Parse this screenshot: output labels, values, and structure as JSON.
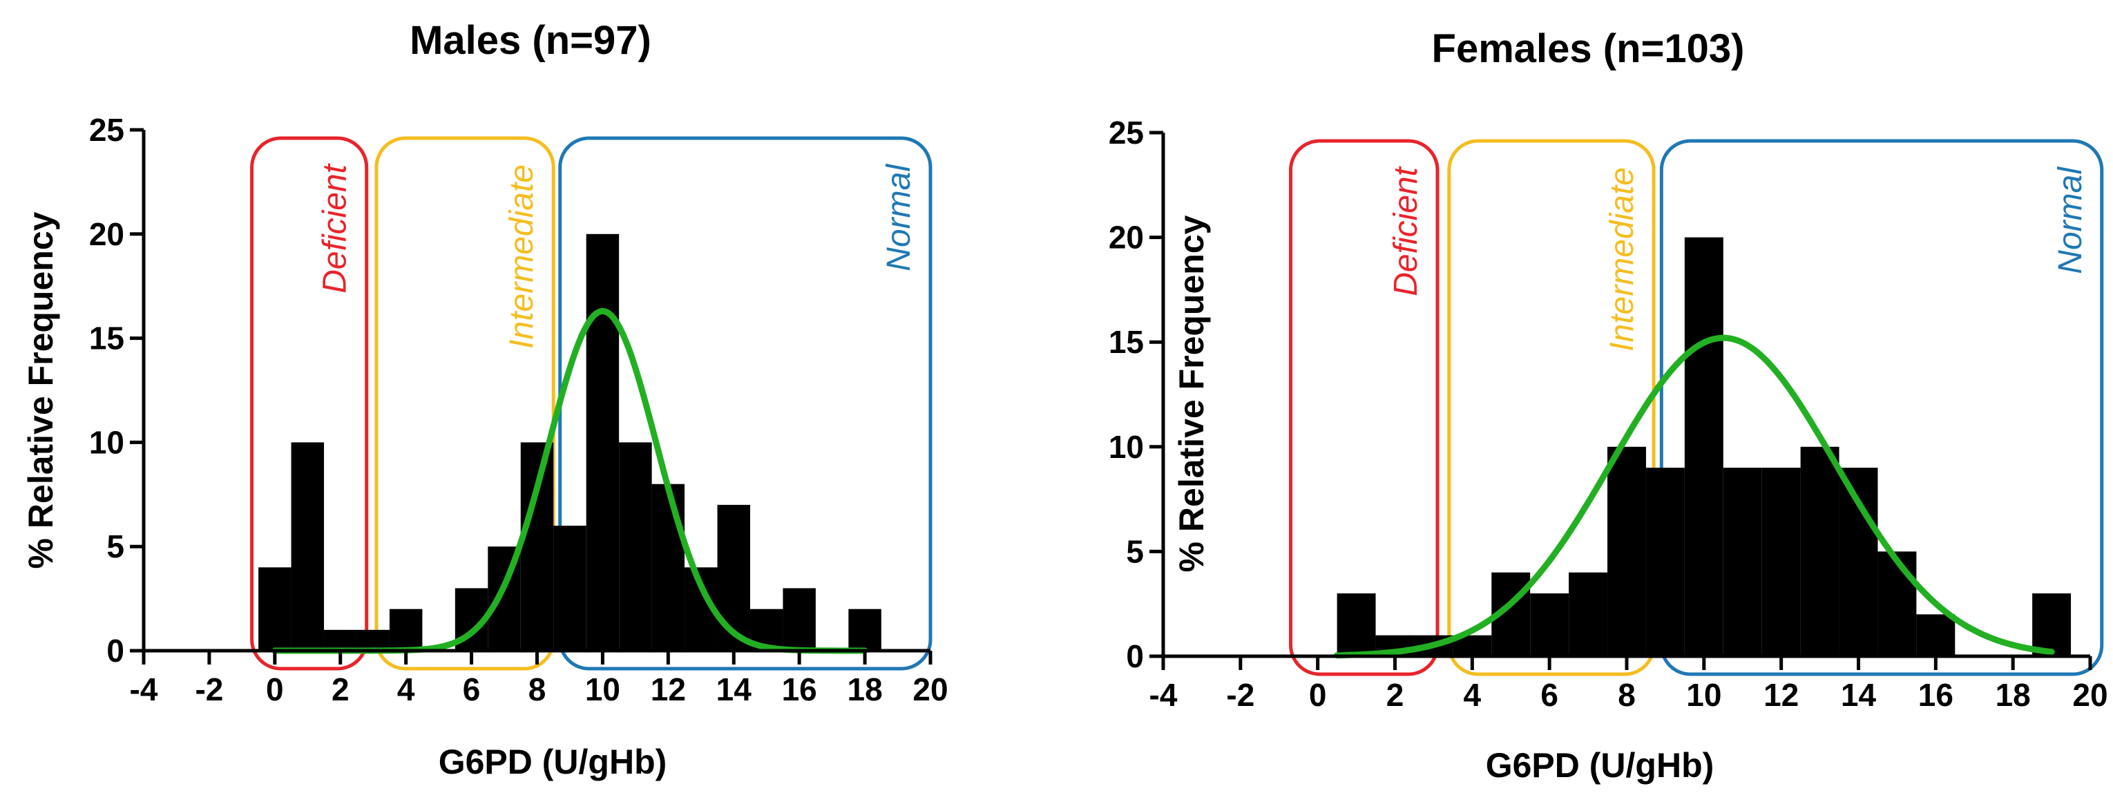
{
  "chart_data": [
    {
      "type": "bar",
      "title": "Males (n=97)",
      "xlabel": "G6PD (U/gHb)",
      "ylabel": "% Relative Frequency",
      "xlim": [
        -4,
        20
      ],
      "ylim": [
        0,
        25
      ],
      "xticks": [
        -4,
        -2,
        0,
        2,
        4,
        6,
        8,
        10,
        12,
        14,
        16,
        18,
        20
      ],
      "yticks": [
        0,
        5,
        10,
        15,
        20,
        25
      ],
      "grid": false,
      "bin_width": 1,
      "bin_centers": [
        0,
        1,
        2,
        3,
        4,
        5,
        6,
        7,
        8,
        9,
        10,
        11,
        12,
        13,
        14,
        15,
        16,
        17,
        18
      ],
      "values": [
        4,
        10,
        1,
        1,
        2,
        0,
        3,
        5,
        10,
        6,
        20,
        10,
        8,
        4,
        7,
        2,
        3,
        0,
        2
      ],
      "fit_curve": {
        "type": "gaussian",
        "mean": 10.0,
        "sd": 1.65,
        "peak": 16.3,
        "x_range": [
          0,
          18
        ]
      },
      "zones": [
        {
          "label": "Deficient",
          "range": [
            -0.7,
            2.8
          ],
          "color": "#e8242b"
        },
        {
          "label": "Intermediate",
          "range": [
            3.1,
            8.5
          ],
          "color": "#f5bd1f"
        },
        {
          "label": "Normal",
          "range": [
            8.7,
            20
          ],
          "color": "#1f78b4"
        }
      ],
      "colors": {
        "bars": "#000000",
        "fit": "#22b022"
      }
    },
    {
      "type": "bar",
      "title": "Females (n=103)",
      "xlabel": "G6PD (U/gHb)",
      "ylabel": "% Relative Frequency",
      "xlim": [
        -4,
        20
      ],
      "ylim": [
        0,
        25
      ],
      "xticks": [
        -4,
        -2,
        0,
        2,
        4,
        6,
        8,
        10,
        12,
        14,
        16,
        18,
        20
      ],
      "yticks": [
        0,
        5,
        10,
        15,
        20,
        25
      ],
      "grid": false,
      "bin_width": 1,
      "bin_centers": [
        1,
        2,
        3,
        4,
        5,
        6,
        7,
        8,
        9,
        10,
        11,
        12,
        13,
        14,
        15,
        16,
        17,
        18,
        19
      ],
      "values": [
        3,
        1,
        1,
        1,
        4,
        3,
        4,
        10,
        9,
        20,
        9,
        9,
        10,
        9,
        5,
        2,
        0,
        0,
        3
      ],
      "fit_curve": {
        "type": "gaussian",
        "mean": 10.5,
        "sd": 2.9,
        "peak": 15.2,
        "x_range": [
          0.5,
          19
        ]
      },
      "zones": [
        {
          "label": "Deficient",
          "range": [
            -0.7,
            3.1
          ],
          "color": "#e8242b"
        },
        {
          "label": "Intermediate",
          "range": [
            3.4,
            8.7
          ],
          "color": "#f5bd1f"
        },
        {
          "label": "Normal",
          "range": [
            8.9,
            20.3
          ],
          "color": "#1f78b4"
        }
      ],
      "colors": {
        "bars": "#000000",
        "fit": "#22b022"
      }
    }
  ]
}
